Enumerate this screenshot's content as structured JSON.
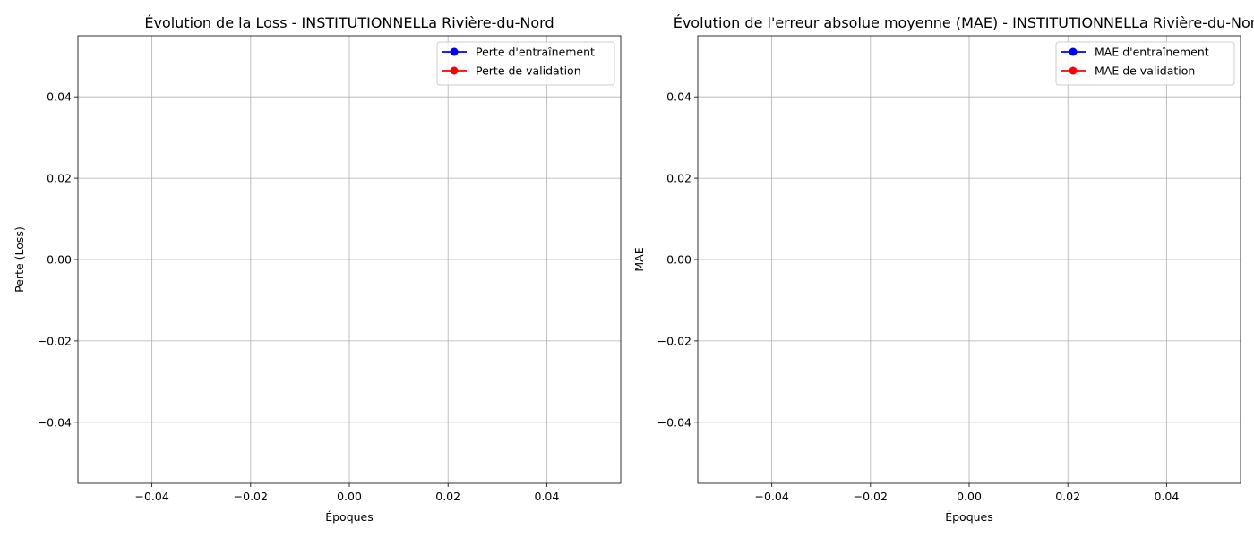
{
  "chart_data": [
    {
      "type": "line",
      "title": "Évolution de la Loss - INSTITUTIONNELLa Rivière-du-Nord",
      "xlabel": "Époques",
      "ylabel": "Perte (Loss)",
      "xlim": [
        -0.055,
        0.055
      ],
      "ylim": [
        -0.055,
        0.055
      ],
      "xticks": [
        -0.04,
        -0.02,
        0.0,
        0.02,
        0.04
      ],
      "yticks": [
        -0.04,
        -0.02,
        0.0,
        0.02,
        0.04
      ],
      "xtick_labels": [
        "−0.04",
        "−0.02",
        "0.00",
        "0.02",
        "0.04"
      ],
      "ytick_labels": [
        "−0.04",
        "−0.02",
        "0.00",
        "0.02",
        "0.04"
      ],
      "grid": true,
      "legend_position": "top-right",
      "series": [
        {
          "name": "Perte d'entraînement",
          "color": "#0000ff",
          "marker": "circle",
          "x": [],
          "y": []
        },
        {
          "name": "Perte de validation",
          "color": "#ff0000",
          "marker": "circle",
          "x": [],
          "y": []
        }
      ]
    },
    {
      "type": "line",
      "title": "Évolution de l'erreur absolue moyenne (MAE) - INSTITUTIONNELLa Rivière-du-Nord",
      "xlabel": "Époques",
      "ylabel": "MAE",
      "xlim": [
        -0.055,
        0.055
      ],
      "ylim": [
        -0.055,
        0.055
      ],
      "xticks": [
        -0.04,
        -0.02,
        0.0,
        0.02,
        0.04
      ],
      "yticks": [
        -0.04,
        -0.02,
        0.0,
        0.02,
        0.04
      ],
      "xtick_labels": [
        "−0.04",
        "−0.02",
        "0.00",
        "0.02",
        "0.04"
      ],
      "ytick_labels": [
        "−0.04",
        "−0.02",
        "0.00",
        "0.02",
        "0.04"
      ],
      "grid": true,
      "legend_position": "top-right",
      "series": [
        {
          "name": "MAE d'entraînement",
          "color": "#0000ff",
          "marker": "circle",
          "x": [],
          "y": []
        },
        {
          "name": "MAE de validation",
          "color": "#ff0000",
          "marker": "circle",
          "x": [],
          "y": []
        }
      ]
    }
  ]
}
